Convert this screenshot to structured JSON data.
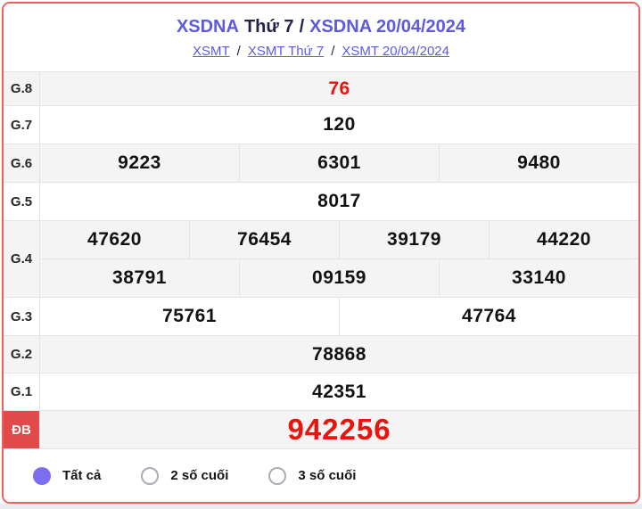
{
  "header": {
    "title": {
      "part1": "XSDNA",
      "part2": "Thứ 7",
      "separator": "/",
      "part3": "XSDNA 20/04/2024"
    },
    "breadcrumb": {
      "link1": "XSMT",
      "sep1": "/",
      "link2": "XSMT Thứ 7",
      "sep2": "/",
      "link3": "XSMT 20/04/2024"
    }
  },
  "results": {
    "rows": [
      {
        "label": "G.8",
        "values": [
          "76"
        ]
      },
      {
        "label": "G.7",
        "values": [
          "120"
        ]
      },
      {
        "label": "G.6",
        "values": [
          "9223",
          "6301",
          "9480"
        ]
      },
      {
        "label": "G.5",
        "values": [
          "8017"
        ]
      },
      {
        "label": "G.4",
        "line1": [
          "47620",
          "76454",
          "39179",
          "44220"
        ],
        "line2": [
          "38791",
          "09159",
          "33140"
        ]
      },
      {
        "label": "G.3",
        "values": [
          "75761",
          "47764"
        ]
      },
      {
        "label": "G.2",
        "values": [
          "78868"
        ]
      },
      {
        "label": "G.1",
        "values": [
          "42351"
        ]
      },
      {
        "label": "ĐB",
        "values": [
          "942256"
        ]
      }
    ]
  },
  "filters": {
    "options": [
      {
        "label": "Tất cả",
        "selected": true
      },
      {
        "label": "2 số cuối",
        "selected": false
      },
      {
        "label": "3 số cuối",
        "selected": false
      }
    ]
  },
  "colors": {
    "accent_purple": "#5d5ae0",
    "dark_text": "#23234a",
    "result_red": "#ea130c",
    "card_border": "#ee5f5f",
    "special_label_bg": "#e14b4b",
    "row_alt_bg": "#f4f4f5",
    "radio_selected": "#7b6ef0"
  }
}
